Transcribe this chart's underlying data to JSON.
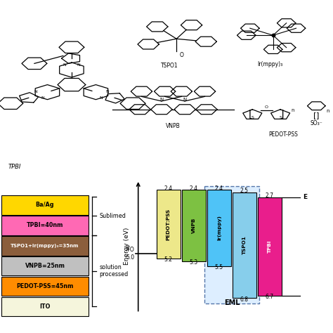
{
  "bg_color": "#ffffff",
  "layer_stack": [
    {
      "label": "Ba/Ag",
      "color": "#FFD700",
      "text_color": "#000000"
    },
    {
      "label": "TPBI=40nm",
      "color": "#FF69B4",
      "text_color": "#000000"
    },
    {
      "label": "TSPO1+Ir(mppy)₃=35nm",
      "color": "#8B5E3C",
      "text_color": "#ffffff"
    },
    {
      "label": "VNPB=25nm",
      "color": "#C0C0C0",
      "text_color": "#000000"
    },
    {
      "label": "PEDOT-PSS=45nm",
      "color": "#FF8C00",
      "text_color": "#000000"
    },
    {
      "label": "ITO",
      "color": "#F5F5DC",
      "text_color": "#000000"
    }
  ],
  "sublimed_text": "Sublimed",
  "solution_text": "solution\nprocessed",
  "y_axis_label": "Energy (eV)",
  "eml_label": "EML",
  "bar_data": [
    {
      "name": "PEDOT:PSS",
      "homo": 5.2,
      "lumo": 2.4,
      "color": "#EDE88A",
      "tc": "#000000"
    },
    {
      "name": "VNPB",
      "homo": 5.3,
      "lumo": 2.4,
      "color": "#7DC142",
      "tc": "#000000"
    },
    {
      "name": "Ir(mppy)",
      "homo": 5.5,
      "lumo": 2.4,
      "color": "#4FC3F7",
      "tc": "#000000"
    },
    {
      "name": "TSPO1",
      "homo": 6.8,
      "lumo": 2.5,
      "color": "#87CEEB",
      "tc": "#000000"
    },
    {
      "name": "TPBI",
      "homo": 6.7,
      "lumo": 2.7,
      "color": "#E91E8C",
      "tc": "#ffffff"
    }
  ],
  "e_min": 2.0,
  "e_max": 7.4
}
